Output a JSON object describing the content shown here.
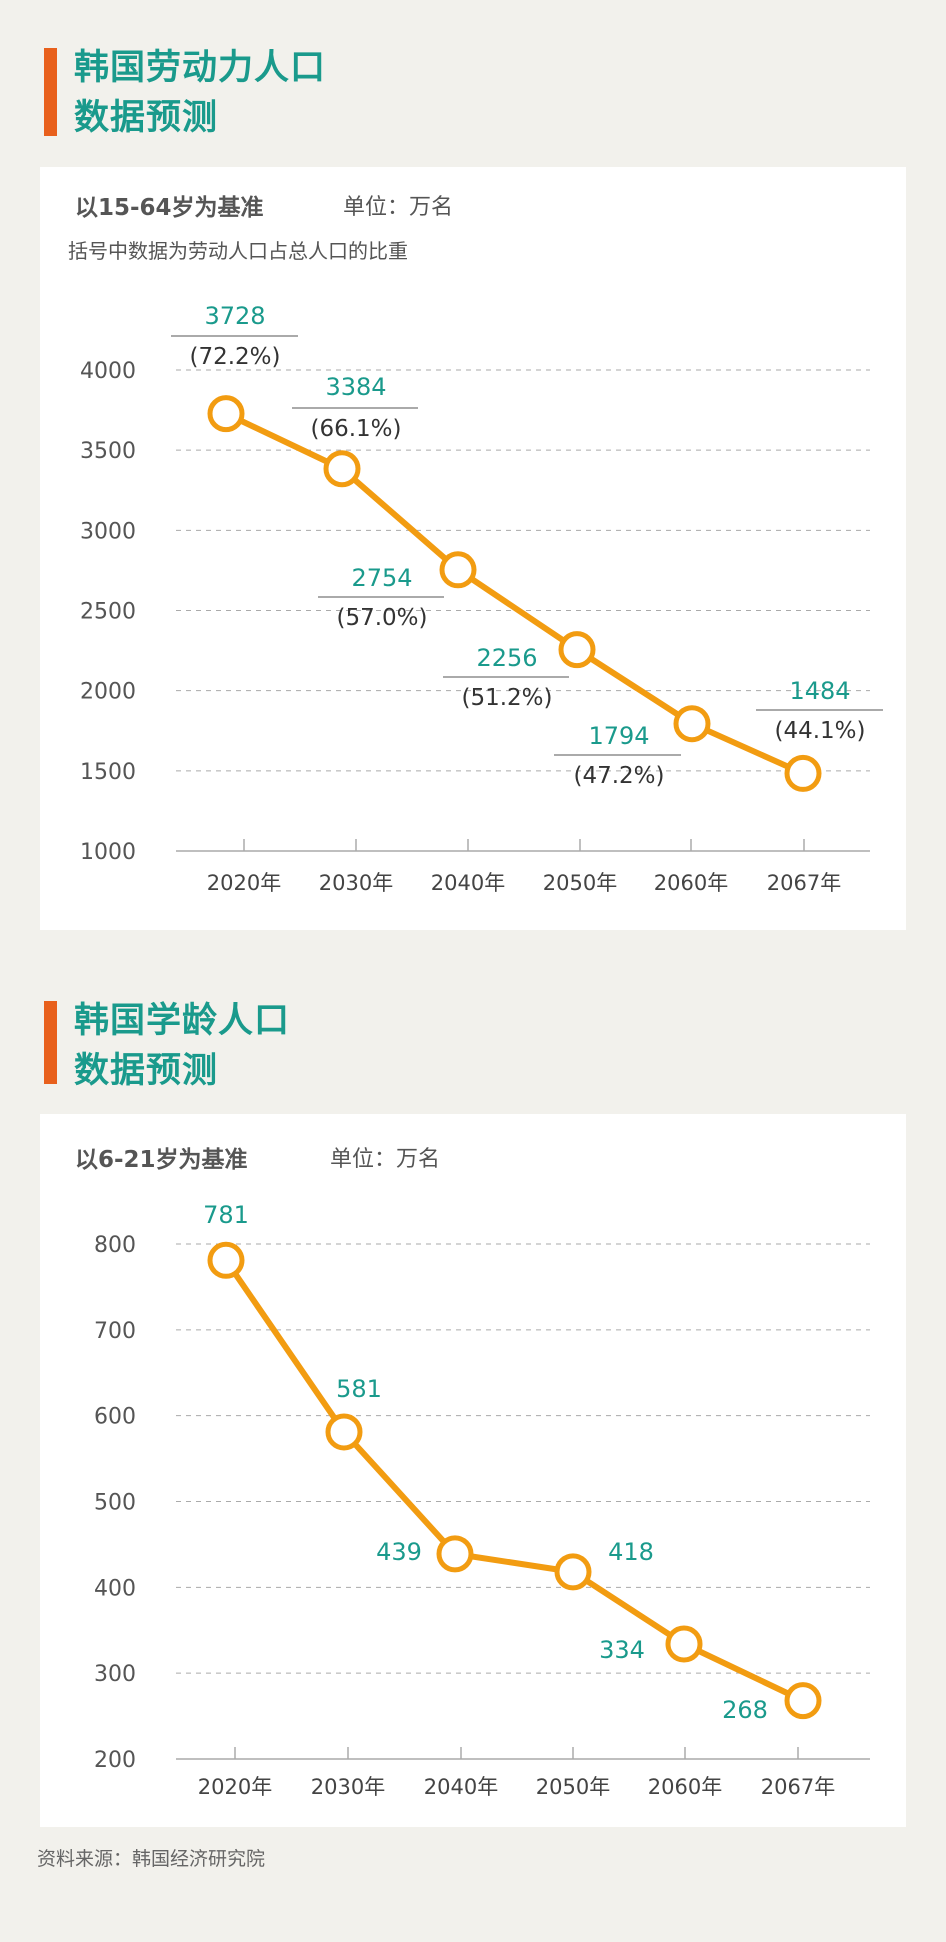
{
  "colors": {
    "accent_bar": "#e8601c",
    "title": "#1a9a8c",
    "line": "#f29c11",
    "value_label": "#1a9a8c",
    "text": "#555555",
    "background": "#f2f1ec"
  },
  "chart_data": [
    {
      "type": "line",
      "title": "韩国劳动力人口数据预测",
      "title_lines": [
        "韩国劳动力人口",
        "数据预测"
      ],
      "subtitle": "以15-64岁为基准",
      "unit": "单位：万名",
      "note": "括号中数据为劳动人口占总人口的比重",
      "categories": [
        "2020年",
        "2030年",
        "2040年",
        "2050年",
        "2060年",
        "2067年"
      ],
      "values": [
        3728,
        3384,
        2754,
        2256,
        1794,
        1484
      ],
      "value_labels": [
        "3728",
        "3384",
        "2754",
        "2256",
        "1794",
        "1484"
      ],
      "share_labels": [
        "(72.2%)",
        "(66.1%)",
        "(57.0%)",
        "(51.2%)",
        "(47.2%)",
        "(44.1%)"
      ],
      "yticks": [
        "1000",
        "1500",
        "2000",
        "2500",
        "3000",
        "3500",
        "4000"
      ],
      "ylim": [
        1000,
        4000
      ],
      "grid": true
    },
    {
      "type": "line",
      "title": "韩国学龄人口数据预测",
      "title_lines": [
        "韩国学龄人口",
        "数据预测"
      ],
      "subtitle": "以6-21岁为基准",
      "unit": "单位：万名",
      "categories": [
        "2020年",
        "2030年",
        "2040年",
        "2050年",
        "2060年",
        "2067年"
      ],
      "values": [
        781,
        581,
        439,
        418,
        334,
        268
      ],
      "value_labels": [
        "781",
        "581",
        "439",
        "418",
        "334",
        "268"
      ],
      "yticks": [
        "200",
        "300",
        "400",
        "500",
        "600",
        "700",
        "800"
      ],
      "ylim": [
        200,
        800
      ],
      "grid": true
    }
  ],
  "footer": "资料来源：韩国经济研究院"
}
